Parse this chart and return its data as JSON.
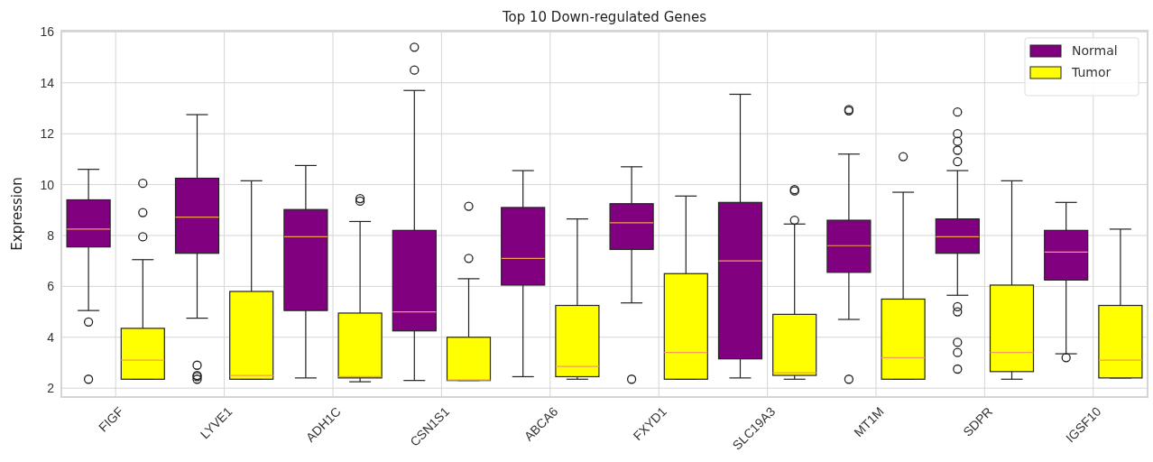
{
  "chart_data": {
    "type": "box",
    "title": "Top 10 Down‑regulated Genes",
    "ylabel": "Expression",
    "categories": [
      "FIGF",
      "LYVE1",
      "ADH1C",
      "CSN1S1",
      "ABCA6",
      "FXYD1",
      "SLC19A3",
      "MT1M",
      "SDPR",
      "IGSF10"
    ],
    "ylim": [
      1.65,
      16.05
    ],
    "yticks": [
      2,
      4,
      6,
      8,
      10,
      12,
      14,
      16
    ],
    "grid": true,
    "legend": "top right",
    "series": [
      {
        "name": "Normal",
        "color": "#800080",
        "boxes": [
          {
            "low": 5.05,
            "q1": 7.55,
            "median": 8.25,
            "q3": 9.4,
            "high": 10.6,
            "outliers": [
              4.6,
              2.35
            ]
          },
          {
            "low": 4.75,
            "q1": 7.3,
            "median": 8.72,
            "q3": 10.25,
            "high": 12.75,
            "outliers": [
              2.9,
              2.5,
              2.45,
              2.35
            ]
          },
          {
            "low": 2.4,
            "q1": 5.05,
            "median": 7.95,
            "q3": 9.02,
            "high": 10.75
          },
          {
            "low": 2.3,
            "q1": 4.25,
            "median": 5.0,
            "q3": 8.2,
            "high": 13.7,
            "outliers": [
              14.5,
              15.4
            ]
          },
          {
            "low": 2.45,
            "q1": 6.05,
            "median": 7.1,
            "q3": 9.1,
            "high": 10.55
          },
          {
            "low": 5.35,
            "q1": 7.45,
            "median": 8.5,
            "q3": 9.25,
            "high": 10.7,
            "outliers": [
              2.35
            ]
          },
          {
            "low": 2.4,
            "q1": 3.15,
            "median": 7.0,
            "q3": 9.3,
            "high": 13.55
          },
          {
            "low": 4.7,
            "q1": 6.55,
            "median": 7.6,
            "q3": 8.6,
            "high": 11.2,
            "outliers": [
              2.35,
              12.9,
              12.95
            ]
          },
          {
            "low": 5.65,
            "q1": 7.3,
            "median": 7.95,
            "q3": 8.65,
            "high": 10.55,
            "outliers": [
              12.85,
              12.0,
              11.7,
              11.35,
              10.9,
              5.2,
              5.0,
              3.8,
              3.4,
              2.75
            ]
          },
          {
            "low": 3.35,
            "q1": 6.25,
            "median": 7.35,
            "q3": 8.2,
            "high": 9.3,
            "outliers": [
              3.2
            ]
          }
        ]
      },
      {
        "name": "Tumor",
        "color": "#ffff00",
        "boxes": [
          {
            "low": 2.35,
            "q1": 2.35,
            "median": 3.1,
            "q3": 4.35,
            "high": 7.05,
            "outliers": [
              7.95,
              8.9,
              10.05
            ]
          },
          {
            "low": 2.35,
            "q1": 2.35,
            "median": 2.5,
            "q3": 5.8,
            "high": 10.15
          },
          {
            "low": 2.25,
            "q1": 2.4,
            "median": 2.45,
            "q3": 4.95,
            "high": 8.55,
            "outliers": [
              9.35,
              9.45
            ]
          },
          {
            "low": 2.3,
            "q1": 2.3,
            "median": 2.32,
            "q3": 4.0,
            "high": 6.3,
            "outliers": [
              7.1,
              9.15
            ]
          },
          {
            "low": 2.35,
            "q1": 2.45,
            "median": 2.85,
            "q3": 5.25,
            "high": 8.65
          },
          {
            "low": 2.35,
            "q1": 2.35,
            "median": 3.4,
            "q3": 6.5,
            "high": 9.55
          },
          {
            "low": 2.35,
            "q1": 2.5,
            "median": 2.6,
            "q3": 4.9,
            "high": 8.45,
            "outliers": [
              8.6,
              9.75,
              9.8
            ]
          },
          {
            "low": 2.35,
            "q1": 2.35,
            "median": 3.2,
            "q3": 5.5,
            "high": 9.7,
            "outliers": [
              11.1
            ]
          },
          {
            "low": 2.35,
            "q1": 2.65,
            "median": 3.4,
            "q3": 6.05,
            "high": 10.15
          },
          {
            "low": 2.4,
            "q1": 2.4,
            "median": 3.1,
            "q3": 5.25,
            "high": 8.25
          }
        ]
      }
    ]
  }
}
